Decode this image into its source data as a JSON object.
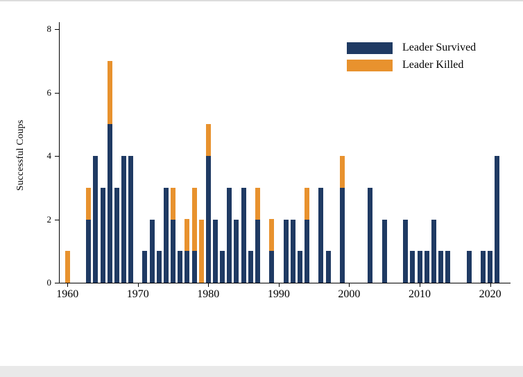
{
  "page": {
    "background": "#ffffff",
    "top_border_color": "#dcdcdc",
    "bottom_border_color": "#e9e9e9",
    "axis_color": "#000000"
  },
  "chart_data": {
    "type": "bar",
    "stacked": true,
    "title": "",
    "xlabel": "",
    "ylabel": "Successful Coups",
    "ylim": [
      0,
      8
    ],
    "yticks": [
      0,
      2,
      4,
      6,
      8
    ],
    "xticks": [
      1960,
      1970,
      1980,
      1990,
      2000,
      2010,
      2020
    ],
    "xlim": [
      1958.8,
      2022.8
    ],
    "grid": false,
    "legend_position": "top-right-inside",
    "series": [
      {
        "name": "Leader Survived",
        "color": "#1f3a63"
      },
      {
        "name": "Leader Killed",
        "color": "#e8922e"
      }
    ],
    "bars": [
      {
        "year": 1960,
        "survived": 0,
        "killed": 1
      },
      {
        "year": 1963,
        "survived": 2,
        "killed": 1
      },
      {
        "year": 1964,
        "survived": 4,
        "killed": 0
      },
      {
        "year": 1965,
        "survived": 3,
        "killed": 0
      },
      {
        "year": 1966,
        "survived": 5,
        "killed": 2
      },
      {
        "year": 1967,
        "survived": 3,
        "killed": 0
      },
      {
        "year": 1968,
        "survived": 4,
        "killed": 0
      },
      {
        "year": 1969,
        "survived": 4,
        "killed": 0
      },
      {
        "year": 1971,
        "survived": 1,
        "killed": 0
      },
      {
        "year": 1972,
        "survived": 2,
        "killed": 0
      },
      {
        "year": 1973,
        "survived": 1,
        "killed": 0
      },
      {
        "year": 1974,
        "survived": 3,
        "killed": 0
      },
      {
        "year": 1975,
        "survived": 2,
        "killed": 1
      },
      {
        "year": 1976,
        "survived": 1,
        "killed": 0
      },
      {
        "year": 1977,
        "survived": 1,
        "killed": 1
      },
      {
        "year": 1978,
        "survived": 1,
        "killed": 2
      },
      {
        "year": 1979,
        "survived": 0,
        "killed": 2
      },
      {
        "year": 1980,
        "survived": 4,
        "killed": 1
      },
      {
        "year": 1981,
        "survived": 2,
        "killed": 0
      },
      {
        "year": 1982,
        "survived": 1,
        "killed": 0
      },
      {
        "year": 1983,
        "survived": 3,
        "killed": 0
      },
      {
        "year": 1984,
        "survived": 2,
        "killed": 0
      },
      {
        "year": 1985,
        "survived": 3,
        "killed": 0
      },
      {
        "year": 1986,
        "survived": 1,
        "killed": 0
      },
      {
        "year": 1987,
        "survived": 2,
        "killed": 1
      },
      {
        "year": 1989,
        "survived": 1,
        "killed": 1
      },
      {
        "year": 1991,
        "survived": 2,
        "killed": 0
      },
      {
        "year": 1992,
        "survived": 2,
        "killed": 0
      },
      {
        "year": 1993,
        "survived": 1,
        "killed": 0
      },
      {
        "year": 1994,
        "survived": 2,
        "killed": 1
      },
      {
        "year": 1996,
        "survived": 3,
        "killed": 0
      },
      {
        "year": 1997,
        "survived": 1,
        "killed": 0
      },
      {
        "year": 1999,
        "survived": 3,
        "killed": 1
      },
      {
        "year": 2003,
        "survived": 3,
        "killed": 0
      },
      {
        "year": 2005,
        "survived": 2,
        "killed": 0
      },
      {
        "year": 2008,
        "survived": 2,
        "killed": 0
      },
      {
        "year": 2009,
        "survived": 1,
        "killed": 0
      },
      {
        "year": 2010,
        "survived": 1,
        "killed": 0
      },
      {
        "year": 2011,
        "survived": 1,
        "killed": 0
      },
      {
        "year": 2012,
        "survived": 2,
        "killed": 0
      },
      {
        "year": 2013,
        "survived": 1,
        "killed": 0
      },
      {
        "year": 2014,
        "survived": 1,
        "killed": 0
      },
      {
        "year": 2017,
        "survived": 1,
        "killed": 0
      },
      {
        "year": 2019,
        "survived": 1,
        "killed": 0
      },
      {
        "year": 2020,
        "survived": 1,
        "killed": 0
      },
      {
        "year": 2021,
        "survived": 4,
        "killed": 0
      }
    ]
  }
}
